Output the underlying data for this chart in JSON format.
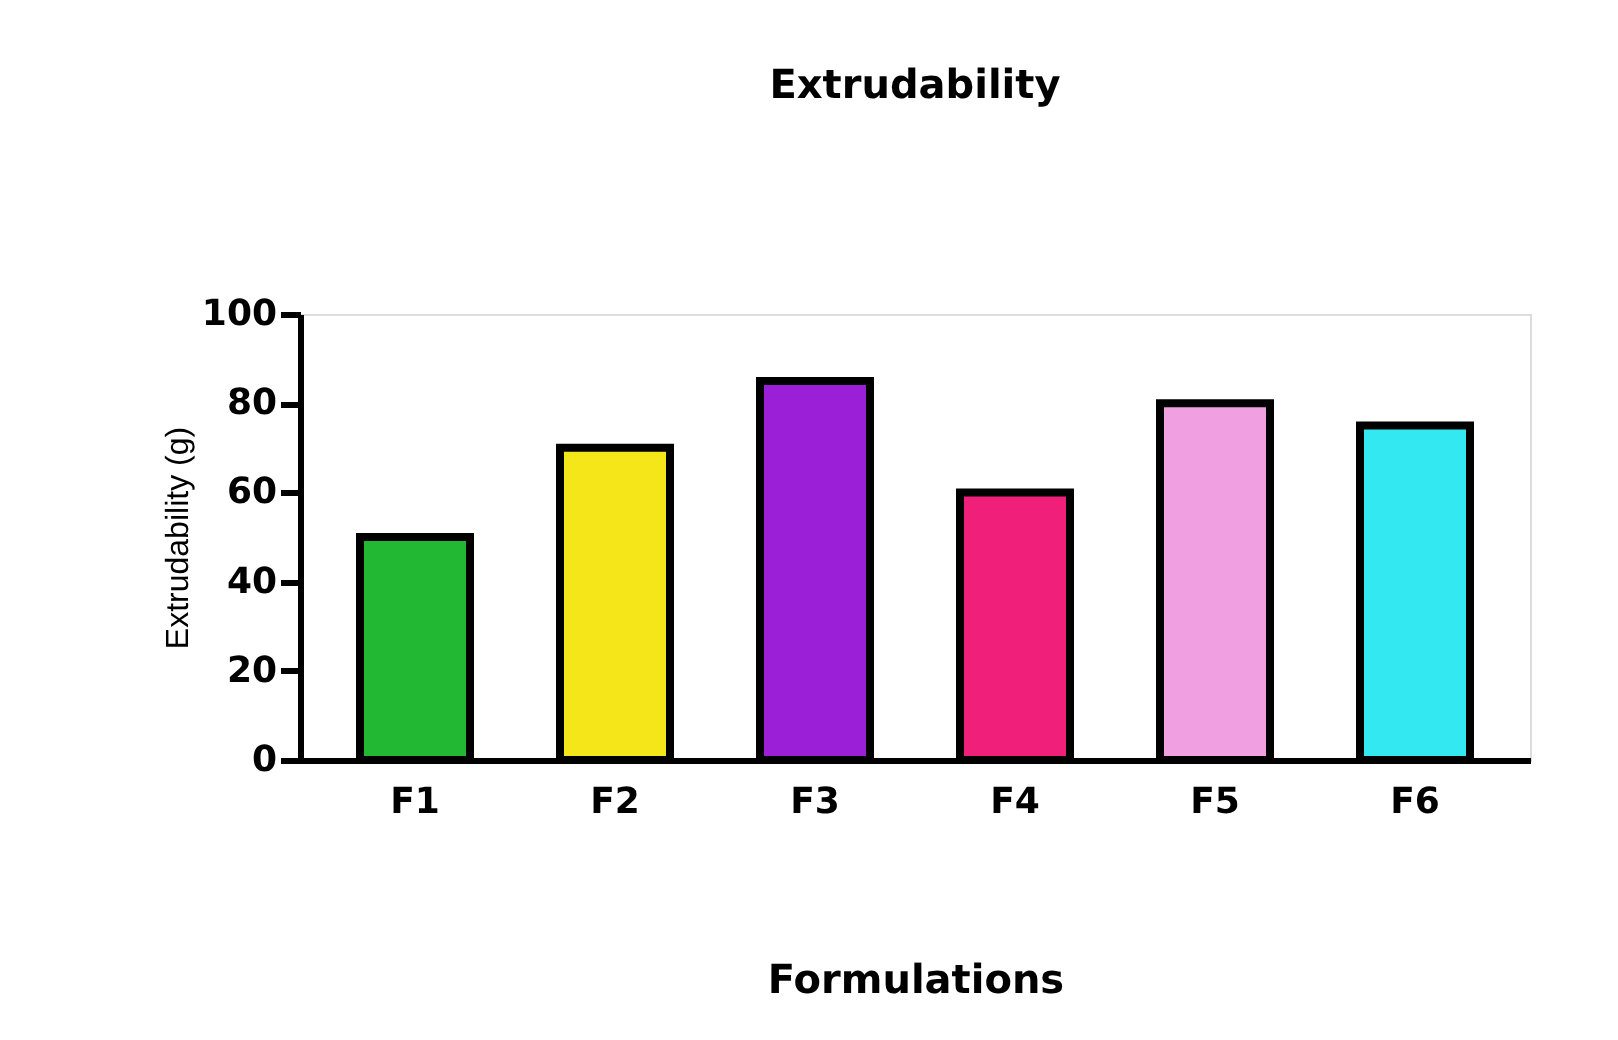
{
  "chart_data": {
    "type": "bar",
    "title": "Extrudability",
    "xlabel": "Formulations",
    "ylabel": "Extrudability (g)",
    "categories": [
      "F1",
      "F2",
      "F3",
      "F4",
      "F5",
      "F6"
    ],
    "values": [
      50,
      70,
      85,
      60,
      80,
      75
    ],
    "colors": [
      "#22b833",
      "#f5e61a",
      "#9b1fd6",
      "#f0207a",
      "#f0a0e0",
      "#33e8f0"
    ],
    "ylim": [
      0,
      100
    ],
    "yticks": [
      0,
      20,
      40,
      60,
      80,
      100
    ],
    "grid": false
  }
}
